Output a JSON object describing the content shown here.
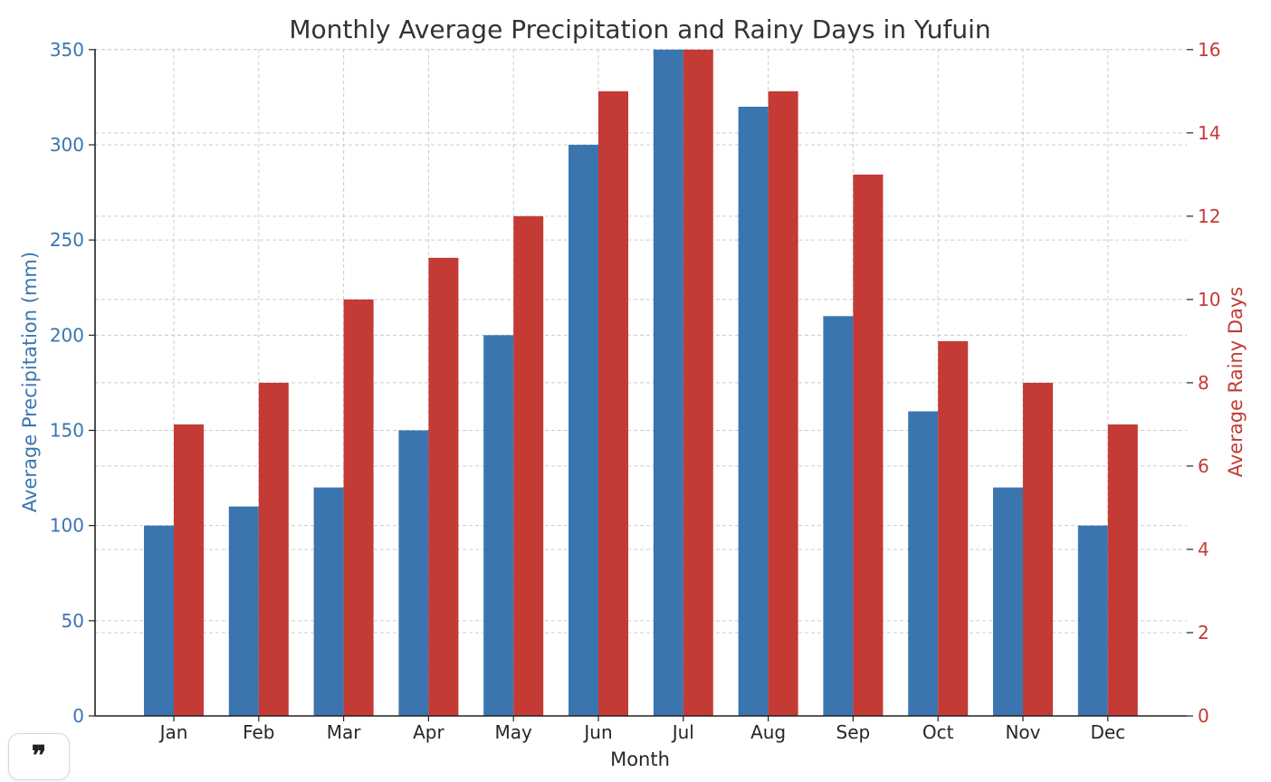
{
  "chart_data": {
    "type": "bar",
    "title": "Monthly Average Precipitation and Rainy Days in Yufuin",
    "xlabel": "Month",
    "categories": [
      "Jan",
      "Feb",
      "Mar",
      "Apr",
      "May",
      "Jun",
      "Jul",
      "Aug",
      "Sep",
      "Oct",
      "Nov",
      "Dec"
    ],
    "series": [
      {
        "name": "Average Precipitation (mm)",
        "axis": "left",
        "color": "#3a75b0",
        "values": [
          100,
          110,
          120,
          150,
          200,
          300,
          350,
          320,
          210,
          160,
          120,
          100
        ]
      },
      {
        "name": "Average Rainy Days",
        "axis": "right",
        "color": "#c43a35",
        "values": [
          7,
          8,
          10,
          11,
          12,
          15,
          16,
          15,
          13,
          9,
          8,
          7
        ]
      }
    ],
    "y_left": {
      "label": "Average Precipitation (mm)",
      "lim": [
        0,
        367.5
      ],
      "ticks": [
        0,
        50,
        100,
        150,
        200,
        250,
        300,
        350
      ],
      "color": "#3a75b0"
    },
    "y_right": {
      "label": "Average Rainy Days",
      "lim": [
        0,
        16.8
      ],
      "ticks": [
        0,
        2,
        4,
        6,
        8,
        10,
        12,
        14,
        16
      ],
      "color": "#c43a35"
    },
    "grid": true
  },
  "ui": {
    "quote_icon": "❞"
  }
}
